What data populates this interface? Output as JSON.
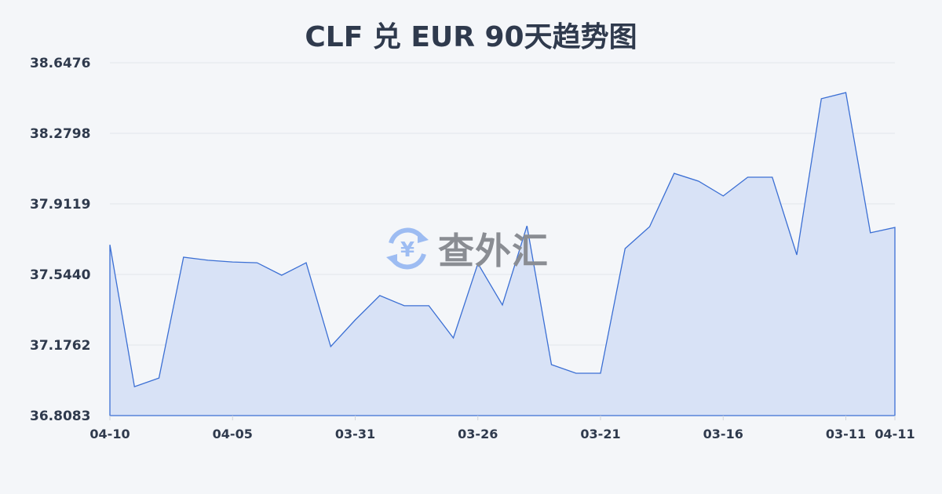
{
  "chart_data": {
    "type": "area",
    "title": "CLF 兑 EUR 90天趋势图",
    "xlabel": "",
    "ylabel": "",
    "ylim": [
      36.8083,
      38.6476
    ],
    "yticks": [
      "38.6476",
      "38.2798",
      "37.9119",
      "37.5440",
      "37.1762",
      "36.8083"
    ],
    "xticks": [
      {
        "index": 0,
        "label": "04-10"
      },
      {
        "index": 5,
        "label": "04-05"
      },
      {
        "index": 10,
        "label": "03-31"
      },
      {
        "index": 15,
        "label": "03-26"
      },
      {
        "index": 20,
        "label": "03-21"
      },
      {
        "index": 25,
        "label": "03-16"
      },
      {
        "index": 30,
        "label": "03-11"
      },
      {
        "index": 32,
        "label": "04-11"
      }
    ],
    "grid": true,
    "values": [
      37.699,
      36.959,
      37.004,
      37.634,
      37.618,
      37.609,
      37.605,
      37.54,
      37.605,
      37.168,
      37.307,
      37.434,
      37.381,
      37.381,
      37.213,
      37.601,
      37.385,
      37.797,
      37.074,
      37.029,
      37.029,
      37.679,
      37.793,
      38.071,
      38.03,
      37.953,
      38.051,
      38.051,
      37.646,
      38.46,
      38.492,
      37.761,
      37.789
    ],
    "line_color": "#3b6fd4",
    "fill_color": "#d6e0f5"
  },
  "watermark": {
    "text": "查外汇",
    "icon": "yen-exchange-icon"
  }
}
